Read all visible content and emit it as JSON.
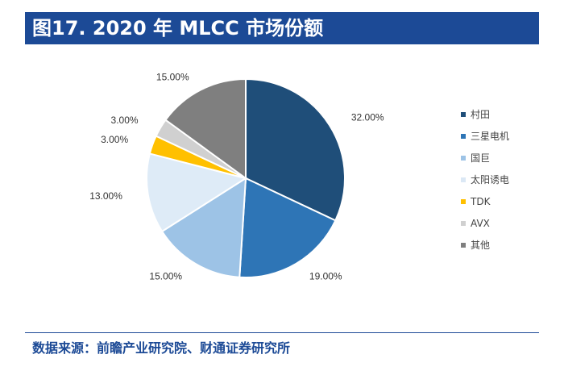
{
  "header": {
    "title": "图17. 2020 年 MLCC 市场份额"
  },
  "chart_data": {
    "type": "pie",
    "title": "",
    "slices": [
      {
        "label": "村田",
        "value": 32.0,
        "value_label": "32.00%",
        "color": "#1f4e79"
      },
      {
        "label": "三星电机",
        "value": 19.0,
        "value_label": "19.00%",
        "color": "#2e75b6"
      },
      {
        "label": "国巨",
        "value": 15.0,
        "value_label": "15.00%",
        "color": "#9dc3e6"
      },
      {
        "label": "太阳诱电",
        "value": 13.0,
        "value_label": "13.00%",
        "color": "#deebf7"
      },
      {
        "label": "TDK",
        "value": 3.0,
        "value_label": "3.00%",
        "color": "#ffc000"
      },
      {
        "label": "AVX",
        "value": 3.0,
        "value_label": "3.00%",
        "color": "#d0d0d0"
      },
      {
        "label": "其他",
        "value": 15.0,
        "value_label": "15.00%",
        "color": "#7f7f7f"
      }
    ],
    "legend_position": "right"
  },
  "footer": {
    "source": "数据来源：前瞻产业研究院、财通证券研究所"
  }
}
